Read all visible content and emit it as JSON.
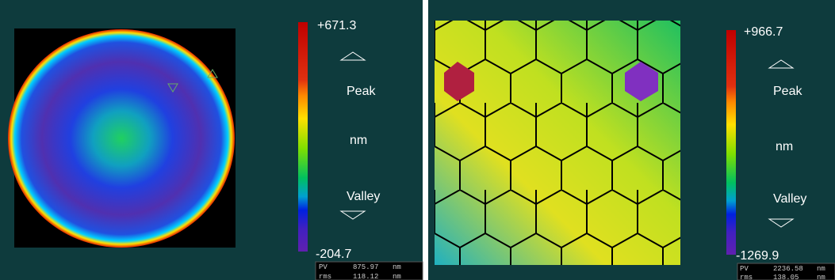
{
  "panels": [
    {
      "max": "+671.3",
      "min": "-204.7",
      "peak": "Peak",
      "unit": "nm",
      "valley": "Valley",
      "stats": [
        {
          "label": "PV",
          "value": "875.97",
          "unit": "nm"
        },
        {
          "label": "rms",
          "value": "118.12",
          "unit": "nm"
        }
      ]
    },
    {
      "max": "+966.7",
      "min": "-1269.9",
      "peak": "Peak",
      "unit": "nm",
      "valley": "Valley",
      "stats": [
        {
          "label": "PV",
          "value": "2236.58",
          "unit": "nm"
        },
        {
          "label": "rms",
          "value": "138.05",
          "unit": "nm"
        }
      ]
    }
  ]
}
